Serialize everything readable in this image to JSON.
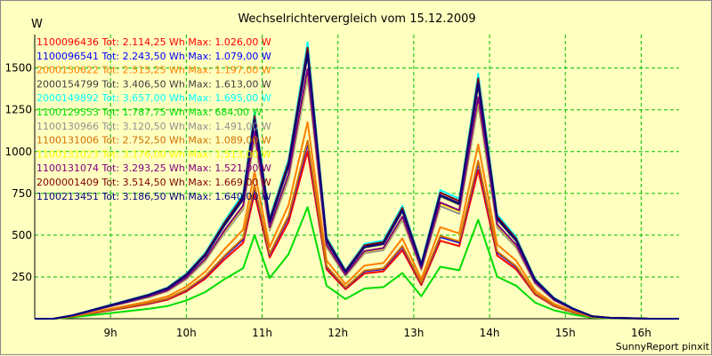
{
  "chart_data": {
    "type": "line",
    "title": "Wechselrichtervergleich vom 15.12.2009",
    "ylabel": "W",
    "xlabel": "",
    "credit": "SunnyReport pinxit",
    "grid": true,
    "legend_placement": "top-left",
    "x_range": [
      8.0,
      16.5
    ],
    "y_range": [
      0,
      1700
    ],
    "x_ticks": [
      9,
      10,
      11,
      12,
      13,
      14,
      15,
      16
    ],
    "x_tick_labels": [
      "9h",
      "10h",
      "11h",
      "12h",
      "13h",
      "14h",
      "15h",
      "16h"
    ],
    "y_ticks": [
      250,
      500,
      750,
      1000,
      1250,
      1500
    ],
    "y_tick_labels": [
      "250",
      "500",
      "750",
      "1000",
      "1250",
      "1500"
    ],
    "x": [
      8.0,
      8.25,
      8.5,
      8.75,
      9.0,
      9.25,
      9.5,
      9.75,
      10.0,
      10.25,
      10.5,
      10.75,
      10.9,
      11.1,
      11.35,
      11.6,
      11.85,
      12.1,
      12.35,
      12.6,
      12.85,
      13.1,
      13.35,
      13.6,
      13.85,
      14.1,
      14.35,
      14.6,
      14.85,
      15.1,
      15.35,
      15.6,
      15.85,
      16.1,
      16.5
    ],
    "series": [
      {
        "name": "1100096436 Tot: 2.114,25 Wh Max: 1.026,00 W",
        "color": "#ff0000",
        "scale": 0.63
      },
      {
        "name": "1100096541 Tot: 2.243,50 Wh Max: 1.079,00 W",
        "color": "#0000ff",
        "scale": 0.66
      },
      {
        "name": "2000150622 Tot: 2.515,25 Wh Max: 1.197,00 W",
        "color": "#ff8000",
        "scale": 0.74
      },
      {
        "name": "2000154799 Tot: 3.406,50 Wh Max: 1.613,00 W",
        "color": "#404040",
        "scale": 0.99
      },
      {
        "name": "2000149892 Tot: 3.657,00 Wh Max: 1.695,00 W",
        "color": "#00ffff",
        "scale": 1.04
      },
      {
        "name": "1100129553 Tot: 1.787,75 Wh Max: 684,00 W",
        "color": "#00dd00",
        "scale": 0.42
      },
      {
        "name": "1100130966 Tot: 3.120,50 Wh Max: 1.491,00 W",
        "color": "#909090",
        "scale": 0.91
      },
      {
        "name": "1100131006 Tot: 2.752,50 Wh Max: 1.089,00 W",
        "color": "#d07000",
        "scale": 0.67
      },
      {
        "name": "1100131023 Tot: 3.176,00 Wh Max: 1.513,00 W",
        "color": "#ffff00",
        "scale": 0.93
      },
      {
        "name": "1100131074 Tot: 3.293,25 Wh Max: 1.521,00 W",
        "color": "#800080",
        "scale": 0.94
      },
      {
        "name": "2000001409 Tot: 3.514,50 Wh Max: 1.669,00 W",
        "color": "#800000",
        "scale": 1.02
      },
      {
        "name": "1100213451 Tot: 3.186,50 Wh Max: 1.640,00 W",
        "color": "#000080",
        "scale": 1.0
      }
    ],
    "base_profile": [
      0,
      0,
      20,
      50,
      80,
      110,
      140,
      180,
      260,
      380,
      560,
      720,
      1190,
      580,
      920,
      1590,
      470,
      280,
      430,
      450,
      650,
      320,
      740,
      690,
      1410,
      600,
      470,
      230,
      120,
      60,
      15,
      5,
      3,
      0,
      0
    ]
  }
}
